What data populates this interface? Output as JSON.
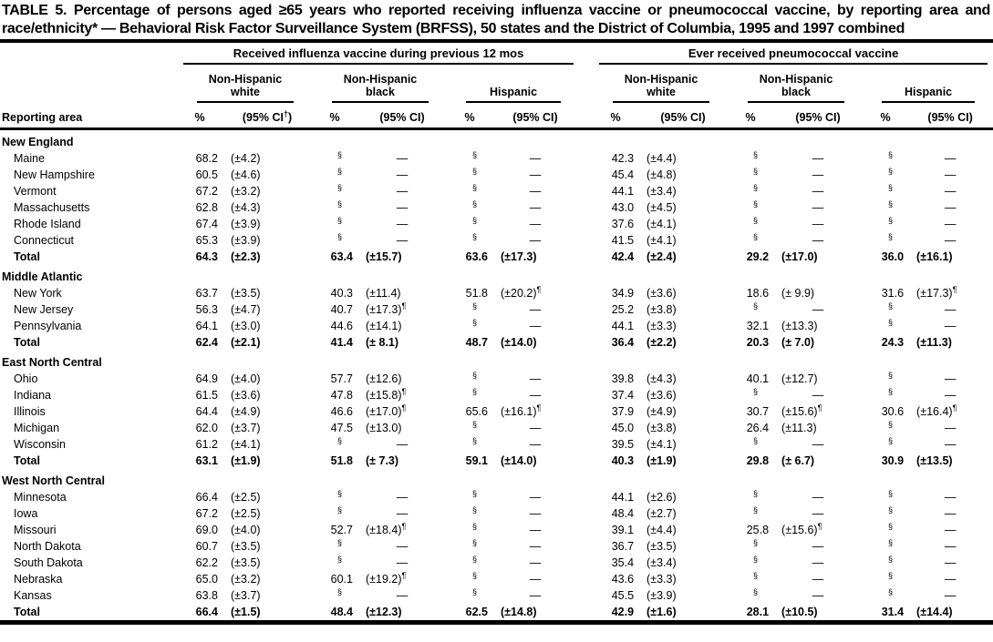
{
  "colors": {
    "text": "#000000",
    "background": "#ffffff",
    "rule": "#000000"
  },
  "title": "TABLE 5. Percentage of persons aged ≥65 years who reported receiving influenza vaccine or pneumococcal vaccine, by reporting area and race/ethnicity* — Behavioral Risk Factor Surveillance System (BRFSS), 50 states and the District of Columbia, 1995 and 1997 combined",
  "table": {
    "reporting_area_header": "Reporting area",
    "vaccine_groups": [
      {
        "label": "Received influenza vaccine during previous 12 mos",
        "subgroups": [
          {
            "label": "Non-Hispanic\nwhite",
            "pct_header": "%",
            "ci_header": "(95% CI†)"
          },
          {
            "label": "Non-Hispanic\nblack",
            "pct_header": "%",
            "ci_header": "(95% CI)"
          },
          {
            "label": "Hispanic",
            "pct_header": "%",
            "ci_header": "(95% CI)"
          }
        ]
      },
      {
        "label": "Ever received pneumococcal vaccine",
        "subgroups": [
          {
            "label": "Non-Hispanic\nwhite",
            "pct_header": "%",
            "ci_header": "(95% CI)"
          },
          {
            "label": "Non-Hispanic\nblack",
            "pct_header": "%",
            "ci_header": "(95% CI)"
          },
          {
            "label": "Hispanic",
            "pct_header": "%",
            "ci_header": "(95% CI)"
          }
        ]
      }
    ],
    "suppressed_marker": "§",
    "no_value_marker": "—",
    "wide_ci_marker": "¶",
    "sections": [
      {
        "name": "New England",
        "rows": [
          {
            "area": "Maine",
            "total": false,
            "cells": [
              "68.2",
              "(±4.2)",
              "§",
              "—",
              "§",
              "—",
              "42.3",
              "(±4.4)",
              "§",
              "—",
              "§",
              "—"
            ]
          },
          {
            "area": "New Hampshire",
            "total": false,
            "cells": [
              "60.5",
              "(±4.6)",
              "§",
              "—",
              "§",
              "—",
              "45.4",
              "(±4.8)",
              "§",
              "—",
              "§",
              "—"
            ]
          },
          {
            "area": "Vermont",
            "total": false,
            "cells": [
              "67.2",
              "(±3.2)",
              "§",
              "—",
              "§",
              "—",
              "44.1",
              "(±3.4)",
              "§",
              "—",
              "§",
              "—"
            ]
          },
          {
            "area": "Massachusetts",
            "total": false,
            "cells": [
              "62.8",
              "(±4.3)",
              "§",
              "—",
              "§",
              "—",
              "43.0",
              "(±4.5)",
              "§",
              "—",
              "§",
              "—"
            ]
          },
          {
            "area": "Rhode Island",
            "total": false,
            "cells": [
              "67.4",
              "(±3.9)",
              "§",
              "—",
              "§",
              "—",
              "37.6",
              "(±4.1)",
              "§",
              "—",
              "§",
              "—"
            ]
          },
          {
            "area": "Connecticut",
            "total": false,
            "cells": [
              "65.3",
              "(±3.9)",
              "§",
              "—",
              "§",
              "—",
              "41.5",
              "(±4.1)",
              "§",
              "—",
              "§",
              "—"
            ]
          },
          {
            "area": "Total",
            "total": true,
            "cells": [
              "64.3",
              "(±2.3)",
              "63.4",
              "(±15.7)",
              "63.6",
              "(±17.3)",
              "42.4",
              "(±2.4)",
              "29.2",
              "(±17.0)",
              "36.0",
              "(±16.1)"
            ]
          }
        ]
      },
      {
        "name": "Middle Atlantic",
        "rows": [
          {
            "area": "New York",
            "total": false,
            "cells": [
              "63.7",
              "(±3.5)",
              "40.3",
              "(±11.4)",
              "51.8",
              "(±20.2)¶",
              "34.9",
              "(±3.6)",
              "18.6",
              "(± 9.9)",
              "31.6",
              "(±17.3)¶"
            ]
          },
          {
            "area": "New Jersey",
            "total": false,
            "cells": [
              "56.3",
              "(±4.7)",
              "40.7",
              "(±17.3)¶",
              "§",
              "—",
              "25.2",
              "(±3.8)",
              "§",
              "—",
              "§",
              "—"
            ]
          },
          {
            "area": "Pennsylvania",
            "total": false,
            "cells": [
              "64.1",
              "(±3.0)",
              "44.6",
              "(±14.1)",
              "§",
              "—",
              "44.1",
              "(±3.3)",
              "32.1",
              "(±13.3)",
              "§",
              "—"
            ]
          },
          {
            "area": "Total",
            "total": true,
            "cells": [
              "62.4",
              "(±2.1)",
              "41.4",
              "(± 8.1)",
              "48.7",
              "(±14.0)",
              "36.4",
              "(±2.2)",
              "20.3",
              "(± 7.0)",
              "24.3",
              "(±11.3)"
            ]
          }
        ]
      },
      {
        "name": "East North Central",
        "rows": [
          {
            "area": "Ohio",
            "total": false,
            "cells": [
              "64.9",
              "(±4.0)",
              "57.7",
              "(±12.6)",
              "§",
              "—",
              "39.8",
              "(±4.3)",
              "40.1",
              "(±12.7)",
              "§",
              "—"
            ]
          },
          {
            "area": "Indiana",
            "total": false,
            "cells": [
              "61.5",
              "(±3.6)",
              "47.8",
              "(±15.8)¶",
              "§",
              "—",
              "37.4",
              "(±3.6)",
              "§",
              "—",
              "§",
              "—"
            ]
          },
          {
            "area": "Illinois",
            "total": false,
            "cells": [
              "64.4",
              "(±4.9)",
              "46.6",
              "(±17.0)¶",
              "65.6",
              "(±16.1)¶",
              "37.9",
              "(±4.9)",
              "30.7",
              "(±15.6)¶",
              "30.6",
              "(±16.4)¶"
            ]
          },
          {
            "area": "Michigan",
            "total": false,
            "cells": [
              "62.0",
              "(±3.7)",
              "47.5",
              "(±13.0)",
              "§",
              "—",
              "45.0",
              "(±3.8)",
              "26.4",
              "(±11.3)",
              "§",
              "—"
            ]
          },
          {
            "area": "Wisconsin",
            "total": false,
            "cells": [
              "61.2",
              "(±4.1)",
              "§",
              "—",
              "§",
              "—",
              "39.5",
              "(±4.1)",
              "§",
              "—",
              "§",
              "—"
            ]
          },
          {
            "area": "Total",
            "total": true,
            "cells": [
              "63.1",
              "(±1.9)",
              "51.8",
              "(± 7.3)",
              "59.1",
              "(±14.0)",
              "40.3",
              "(±1.9)",
              "29.8",
              "(± 6.7)",
              "30.9",
              "(±13.5)"
            ]
          }
        ]
      },
      {
        "name": "West North Central",
        "rows": [
          {
            "area": "Minnesota",
            "total": false,
            "cells": [
              "66.4",
              "(±2.5)",
              "§",
              "—",
              "§",
              "—",
              "44.1",
              "(±2.6)",
              "§",
              "—",
              "§",
              "—"
            ]
          },
          {
            "area": "Iowa",
            "total": false,
            "cells": [
              "67.2",
              "(±2.5)",
              "§",
              "—",
              "§",
              "—",
              "48.4",
              "(±2.7)",
              "§",
              "—",
              "§",
              "—"
            ]
          },
          {
            "area": "Missouri",
            "total": false,
            "cells": [
              "69.0",
              "(±4.0)",
              "52.7",
              "(±18.4)¶",
              "§",
              "—",
              "39.1",
              "(±4.4)",
              "25.8",
              "(±15.6)¶",
              "§",
              "—"
            ]
          },
          {
            "area": "North Dakota",
            "total": false,
            "cells": [
              "60.7",
              "(±3.5)",
              "§",
              "—",
              "§",
              "—",
              "36.7",
              "(±3.5)",
              "§",
              "—",
              "§",
              "—"
            ]
          },
          {
            "area": "South Dakota",
            "total": false,
            "cells": [
              "62.2",
              "(±3.5)",
              "§",
              "—",
              "§",
              "—",
              "35.4",
              "(±3.4)",
              "§",
              "—",
              "§",
              "—"
            ]
          },
          {
            "area": "Nebraska",
            "total": false,
            "cells": [
              "65.0",
              "(±3.2)",
              "60.1",
              "(±19.2)¶",
              "§",
              "—",
              "43.6",
              "(±3.3)",
              "§",
              "—",
              "§",
              "—"
            ]
          },
          {
            "area": "Kansas",
            "total": false,
            "cells": [
              "63.8",
              "(±3.7)",
              "§",
              "—",
              "§",
              "—",
              "45.5",
              "(±3.9)",
              "§",
              "—",
              "§",
              "—"
            ]
          },
          {
            "area": "Total",
            "total": true,
            "cells": [
              "66.4",
              "(±1.5)",
              "48.4",
              "(±12.3)",
              "62.5",
              "(±14.8)",
              "42.9",
              "(±1.6)",
              "28.1",
              "(±10.5)",
              "31.4",
              "(±14.4)"
            ]
          }
        ]
      }
    ]
  }
}
